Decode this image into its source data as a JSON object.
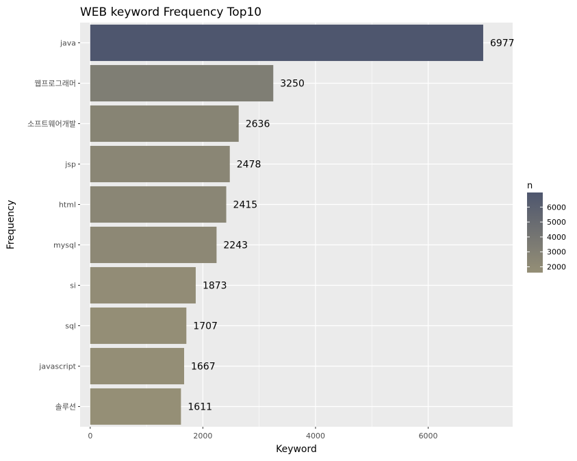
{
  "chart_data": {
    "type": "bar",
    "orientation": "horizontal",
    "title": "WEB keyword Frequency Top10",
    "xlabel": "Keyword",
    "ylabel": "Frequency",
    "categories": [
      "java",
      "웹프로그래머",
      "소프트웨어개발",
      "jsp",
      "html",
      "mysql",
      "si",
      "sql",
      "javascript",
      "솔루션"
    ],
    "values": [
      6977,
      3250,
      2636,
      2478,
      2415,
      2243,
      1873,
      1707,
      1667,
      1611
    ],
    "xlim": [
      -180,
      7500
    ],
    "x_ticks": [
      0,
      2000,
      4000,
      6000
    ],
    "grid": true,
    "legend": {
      "title": "n",
      "position": "right",
      "ticks": [
        2000,
        3000,
        4000,
        5000,
        6000
      ],
      "range": [
        1611,
        6977
      ],
      "low_color": "#958F76",
      "high_color": "#4E566E"
    }
  }
}
